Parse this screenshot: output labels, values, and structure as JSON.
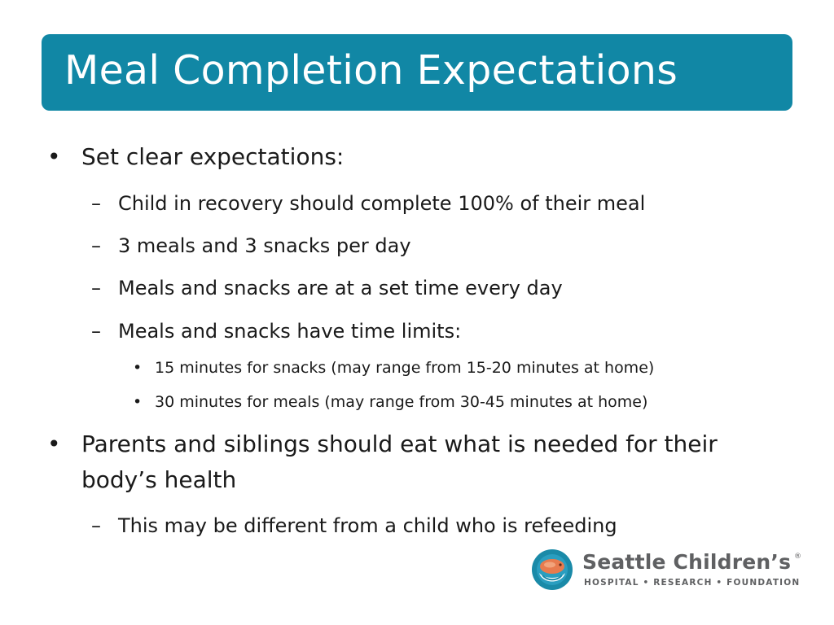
{
  "slide": {
    "title": "Meal Completion Expectations",
    "colors": {
      "title_bar": "#1187a5",
      "title_text": "#ffffff",
      "body_text": "#1a1a1a",
      "logo_text": "#5f6062"
    }
  },
  "bullets": {
    "markers": {
      "level1": "•",
      "level2": "–",
      "level3": "•"
    },
    "items": [
      {
        "text": "Set clear expectations:",
        "children": [
          {
            "text": "Child in recovery should complete 100% of their meal"
          },
          {
            "text": "3 meals and 3 snacks per day"
          },
          {
            "text": "Meals and snacks are at a set time every day"
          },
          {
            "text": "Meals and snacks have time limits:",
            "children": [
              {
                "text": "15 minutes for snacks (may range from 15-20 minutes at home)"
              },
              {
                "text": "30 minutes for meals (may range from 30-45 minutes at home)"
              }
            ]
          }
        ]
      },
      {
        "text_line1": "Parents and siblings should eat what is needed for their",
        "text_line2": "body’s health",
        "children": [
          {
            "text": "This may be different from a child who is refeeding"
          }
        ]
      }
    ]
  },
  "logo": {
    "name": "Seattle Children’s",
    "registered": "®",
    "tagline": "HOSPITAL • RESEARCH • FOUNDATION",
    "icon": "seattle-childrens-whale-logo"
  }
}
